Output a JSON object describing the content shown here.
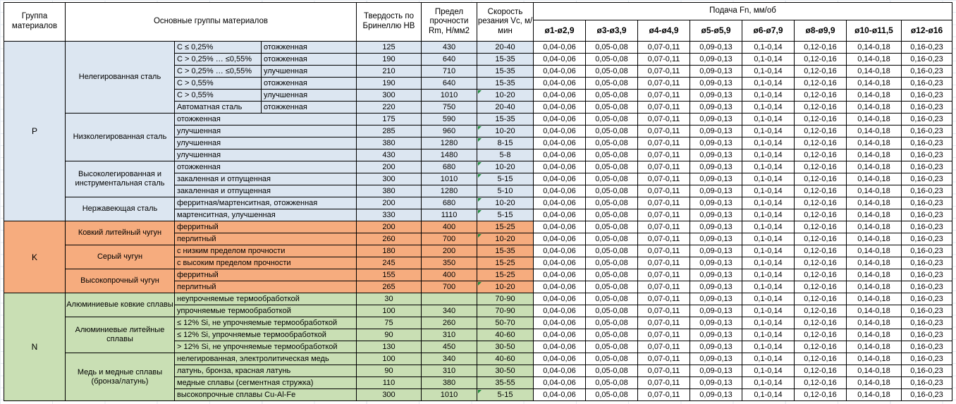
{
  "header": {
    "col_group": "Группа материалов",
    "col_main": "Основные группы материалов",
    "col_hb": "Твердость по Бринеллю HB",
    "col_rm": "Предел прочности Rm, Н/мм2",
    "col_vc": "Скорость резания Vc, м/мин",
    "col_feed": "Подача Fn, мм/об",
    "feed_cols": [
      "ø1-ø2,9",
      "ø3-ø3,9",
      "ø4-ø4,9",
      "ø5-ø5,9",
      "ø6-ø7,9",
      "ø8-ø9,9",
      "ø10-ø11,5",
      "ø12-ø16"
    ]
  },
  "feed_values": [
    "0,04-0,06",
    "0,05-0,08",
    "0,07-0,11",
    "0,09-0,13",
    "0,1-0,14",
    "0,12-0,16",
    "0,14-0,18",
    "0,16-0,23"
  ],
  "colors": {
    "steel_blue": "#DCE6F1",
    "cast_iron_orange": "#F6AC7E",
    "nonferrous_green": "#C9DFB4",
    "flag_green": "#1F8A3B",
    "border": "#000000"
  },
  "sections": [
    {
      "code": "P",
      "color": "#DCE6F1",
      "groups": [
        {
          "name": "Нелегированная сталь",
          "rows": [
            {
              "spec": "C ≤ 0,25%",
              "state": "отожженная",
              "hb": "125",
              "rm": "430",
              "vc": "20-40",
              "flag": false
            },
            {
              "spec": "C > 0,25% … ≤0,55%",
              "state": "отожженная",
              "hb": "190",
              "rm": "640",
              "vc": "15-35",
              "flag": false
            },
            {
              "spec": "C > 0,25% … ≤0,55%",
              "state": "улучшенная",
              "hb": "210",
              "rm": "710",
              "vc": "15-35",
              "flag": false
            },
            {
              "spec": "C > 0,55%",
              "state": "отожженная",
              "hb": "190",
              "rm": "640",
              "vc": "15-35",
              "flag": false
            },
            {
              "spec": "C > 0,55%",
              "state": "улучшенная",
              "hb": "300",
              "rm": "1010",
              "vc": "10-20",
              "flag": true
            },
            {
              "spec": "Автоматная сталь",
              "state": "отожженная",
              "hb": "220",
              "rm": "750",
              "vc": "20-40",
              "flag": false
            }
          ]
        },
        {
          "name": "Низколегированная сталь",
          "rows": [
            {
              "spec": null,
              "state": "отожженная",
              "hb": "175",
              "rm": "590",
              "vc": "15-35",
              "flag": false
            },
            {
              "spec": null,
              "state": "улучшенная",
              "hb": "285",
              "rm": "960",
              "vc": "10-20",
              "flag": true
            },
            {
              "spec": null,
              "state": "улучшенная",
              "hb": "380",
              "rm": "1280",
              "vc": "8-15",
              "flag": true
            },
            {
              "spec": null,
              "state": "улучшенная",
              "hb": "430",
              "rm": "1480",
              "vc": "5-8",
              "flag": false
            }
          ]
        },
        {
          "name": "Высоколегированная и инструментальная сталь",
          "rows": [
            {
              "spec": null,
              "state": "отожженная",
              "hb": "200",
              "rm": "680",
              "vc": "10-20",
              "flag": true
            },
            {
              "spec": null,
              "state": "закаленная и отпущенная",
              "hb": "300",
              "rm": "1010",
              "vc": "5-15",
              "flag": true
            },
            {
              "spec": null,
              "state": "закаленная и отпущенная",
              "hb": "380",
              "rm": "1280",
              "vc": "5-10",
              "flag": false
            }
          ]
        },
        {
          "name": "Нержавеющая сталь",
          "rows": [
            {
              "spec": null,
              "state": "ферритная/мартенситная, отожженная",
              "hb": "200",
              "rm": "680",
              "vc": "10-20",
              "flag": true
            },
            {
              "spec": null,
              "state": "мартенситная, улучшенная",
              "hb": "330",
              "rm": "1110",
              "vc": "5-15",
              "flag": true
            }
          ]
        }
      ]
    },
    {
      "code": "K",
      "color": "#F6AC7E",
      "groups": [
        {
          "name": "Ковкий литейный чугун",
          "rows": [
            {
              "spec": null,
              "state": "ферритный",
              "hb": "200",
              "rm": "400",
              "vc": "15-25",
              "flag": false
            },
            {
              "spec": null,
              "state": "перлитный",
              "hb": "260",
              "rm": "700",
              "vc": "10-20",
              "flag": true
            }
          ]
        },
        {
          "name": "Серый чугун",
          "rows": [
            {
              "spec": null,
              "state": "с низким пределом прочности",
              "hb": "180",
              "rm": "200",
              "vc": "15-35",
              "flag": false
            },
            {
              "spec": null,
              "state": "с высоким пределом прочности",
              "hb": "245",
              "rm": "350",
              "vc": "15-25",
              "flag": false
            }
          ]
        },
        {
          "name": "Высокопрочный чугун",
          "rows": [
            {
              "spec": null,
              "state": "ферритный",
              "hb": "155",
              "rm": "400",
              "vc": "15-25",
              "flag": false
            },
            {
              "spec": null,
              "state": "перлитный",
              "hb": "265",
              "rm": "700",
              "vc": "10-20",
              "flag": true
            }
          ]
        }
      ]
    },
    {
      "code": "N",
      "color": "#C9DFB4",
      "groups": [
        {
          "name": "Алюминиевые ковкие сплавы",
          "rows": [
            {
              "spec": null,
              "state": "неупрочняемые термообработкой",
              "hb": "30",
              "rm": "",
              "vc": "70-90",
              "flag": false
            },
            {
              "spec": null,
              "state": "упрочняемые термообработкой",
              "hb": "100",
              "rm": "340",
              "vc": "70-90",
              "flag": false
            }
          ]
        },
        {
          "name": "Алюминиевые литейные сплавы",
          "rows": [
            {
              "spec": null,
              "state": "≤ 12% Si, не упрочняемые термообработкой",
              "hb": "75",
              "rm": "260",
              "vc": "50-70",
              "flag": false
            },
            {
              "spec": null,
              "state": "≤ 12% Si, упрочняемые термообработкой",
              "hb": "90",
              "rm": "310",
              "vc": "40-60",
              "flag": false
            },
            {
              "spec": null,
              "state": "> 12% Si, не упрочняемые термообработкой",
              "hb": "130",
              "rm": "450",
              "vc": "30-50",
              "flag": false
            }
          ]
        },
        {
          "name": "Медь и медные сплавы (бронза/латунь)",
          "rows": [
            {
              "spec": null,
              "state": "нелегированная, электролитическая медь",
              "hb": "100",
              "rm": "340",
              "vc": "40-60",
              "flag": false
            },
            {
              "spec": null,
              "state": "латунь, бронза, красная латунь",
              "hb": "90",
              "rm": "310",
              "vc": "30-50",
              "flag": false
            },
            {
              "spec": null,
              "state": "медные сплавы (сегментная стружка)",
              "hb": "110",
              "rm": "380",
              "vc": "35-55",
              "flag": false
            },
            {
              "spec": null,
              "state": "высокопрочные сплавы Cu-Al-Fe",
              "hb": "300",
              "rm": "1010",
              "vc": "5-15",
              "flag": true
            }
          ]
        }
      ]
    }
  ]
}
